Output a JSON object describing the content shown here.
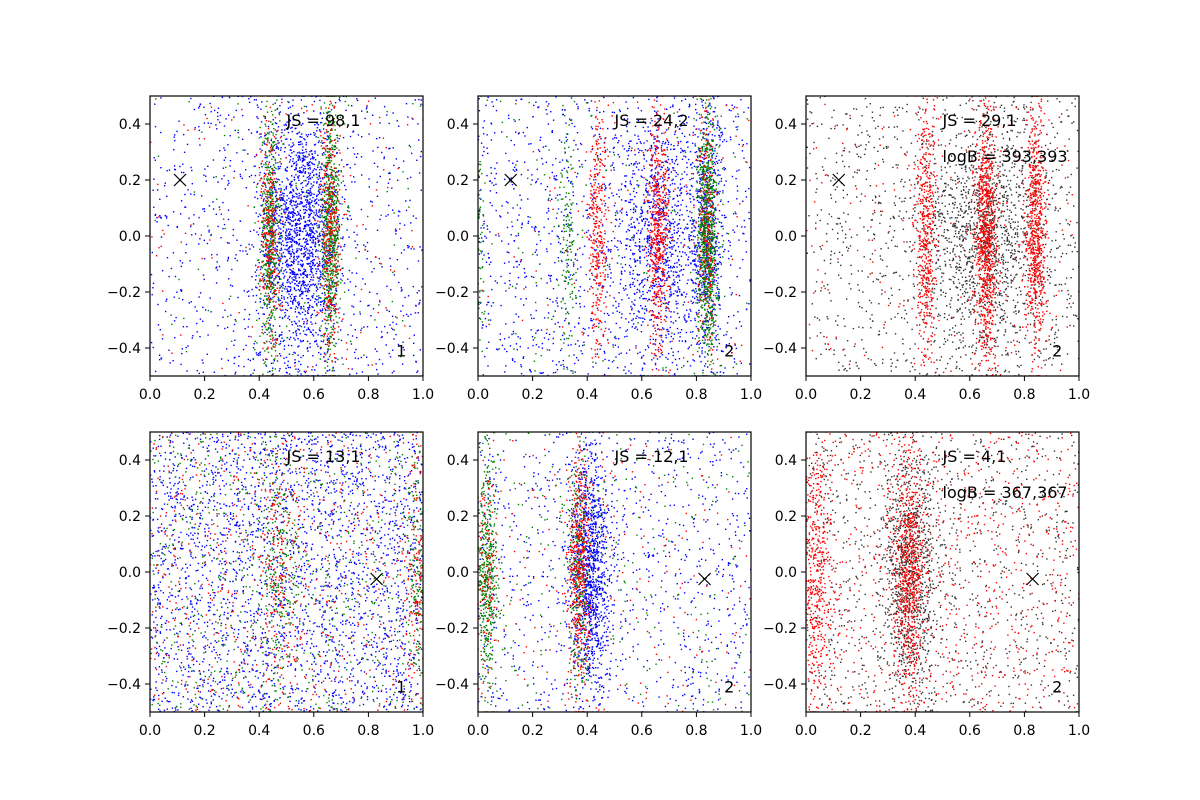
{
  "chart_data": [
    {
      "type": "scatter",
      "panel": "top-left",
      "xlim": [
        0,
        1
      ],
      "ylim": [
        -0.5,
        0.5
      ],
      "xticks": [
        "0.0",
        "0.2",
        "0.4",
        "0.6",
        "0.8",
        "1.0"
      ],
      "yticks": [
        "0.4",
        "0.2",
        "0.0",
        "−0.2",
        "−0.4"
      ],
      "annotations": [
        "JS = 98,1"
      ],
      "corner_label": "1",
      "marker_x": {
        "x": 0.11,
        "y": 0.2,
        "symbol": "×"
      },
      "series": [
        {
          "name": "blue",
          "color": "#0000ff",
          "bands": [
            {
              "center": 0.55,
              "width": 0.07,
              "points": 1600
            }
          ],
          "background_points": 900
        },
        {
          "name": "green",
          "color": "#008000",
          "bands": [
            {
              "center": 0.44,
              "width": 0.018,
              "points": 550
            },
            {
              "center": 0.66,
              "width": 0.018,
              "points": 700
            }
          ],
          "background_points": 120
        },
        {
          "name": "red",
          "color": "#ff0000",
          "bands": [
            {
              "center": 0.44,
              "width": 0.018,
              "points": 300
            },
            {
              "center": 0.66,
              "width": 0.018,
              "points": 350
            }
          ],
          "background_points": 120
        }
      ]
    },
    {
      "type": "scatter",
      "panel": "top-middle",
      "xlim": [
        0,
        1
      ],
      "ylim": [
        -0.5,
        0.5
      ],
      "xticks": [
        "0.0",
        "0.2",
        "0.4",
        "0.6",
        "0.8",
        "1.0"
      ],
      "yticks": [
        "0.4",
        "0.2",
        "0.0",
        "−0.2",
        "−0.4"
      ],
      "annotations": [
        "JS = 24,2"
      ],
      "corner_label": "2",
      "marker_x": {
        "x": 0.12,
        "y": 0.2,
        "symbol": "×"
      },
      "series": [
        {
          "name": "blue",
          "color": "#0000ff",
          "bands": [
            {
              "center": 0.66,
              "width": 0.08,
              "points": 900
            },
            {
              "center": 0.84,
              "width": 0.03,
              "points": 500
            }
          ],
          "background_points": 1200
        },
        {
          "name": "green",
          "color": "#008000",
          "bands": [
            {
              "center": 0.84,
              "width": 0.018,
              "points": 900
            },
            {
              "center": 0.0,
              "width": 0.01,
              "points": 120
            },
            {
              "center": 0.33,
              "width": 0.015,
              "points": 150
            }
          ],
          "background_points": 150
        },
        {
          "name": "red",
          "color": "#ff0000",
          "bands": [
            {
              "center": 0.44,
              "width": 0.018,
              "points": 350
            },
            {
              "center": 0.66,
              "width": 0.02,
              "points": 550
            },
            {
              "center": 0.84,
              "width": 0.018,
              "points": 250
            }
          ],
          "background_points": 100
        }
      ]
    },
    {
      "type": "scatter",
      "panel": "top-right",
      "xlim": [
        0,
        1
      ],
      "ylim": [
        -0.5,
        0.5
      ],
      "xticks": [
        "0.0",
        "0.2",
        "0.4",
        "0.6",
        "0.8",
        "1.0"
      ],
      "yticks": [
        "0.4",
        "0.2",
        "0.0",
        "−0.2",
        "−0.4"
      ],
      "annotations": [
        "JS = 29,1",
        "logB = 393,393"
      ],
      "corner_label": "2",
      "marker_x": {
        "x": 0.12,
        "y": 0.2,
        "symbol": "×"
      },
      "series": [
        {
          "name": "black",
          "color": "#333333",
          "bands": [
            {
              "center": 0.66,
              "width": 0.12,
              "points": 1300
            }
          ],
          "background_points": 900
        },
        {
          "name": "red",
          "color": "#ff0000",
          "bands": [
            {
              "center": 0.44,
              "width": 0.02,
              "points": 500
            },
            {
              "center": 0.66,
              "width": 0.02,
              "points": 900
            },
            {
              "center": 0.84,
              "width": 0.02,
              "points": 700
            }
          ],
          "background_points": 200
        }
      ]
    },
    {
      "type": "scatter",
      "panel": "bottom-left",
      "xlim": [
        0,
        1
      ],
      "ylim": [
        -0.5,
        0.5
      ],
      "xticks": [
        "0.0",
        "0.2",
        "0.4",
        "0.6",
        "0.8",
        "1.0"
      ],
      "yticks": [
        "0.4",
        "0.2",
        "0.0",
        "−0.2",
        "−0.4"
      ],
      "annotations": [
        "JS = 13,1"
      ],
      "corner_label": "1",
      "marker_x": {
        "x": 0.83,
        "y": -0.025,
        "symbol": "×"
      },
      "series": [
        {
          "name": "blue",
          "color": "#0000ff",
          "bands": [],
          "background_points": 2600
        },
        {
          "name": "green",
          "color": "#008000",
          "bands": [
            {
              "center": 0.47,
              "width": 0.04,
              "points": 250
            },
            {
              "center": 0.98,
              "width": 0.02,
              "points": 150
            }
          ],
          "background_points": 700
        },
        {
          "name": "red",
          "color": "#ff0000",
          "bands": [
            {
              "center": 0.47,
              "width": 0.04,
              "points": 200
            },
            {
              "center": 0.98,
              "width": 0.02,
              "points": 120
            }
          ],
          "background_points": 600
        }
      ]
    },
    {
      "type": "scatter",
      "panel": "bottom-middle",
      "xlim": [
        0,
        1
      ],
      "ylim": [
        -0.5,
        0.5
      ],
      "xticks": [
        "0.0",
        "0.2",
        "0.4",
        "0.6",
        "0.8",
        "1.0"
      ],
      "yticks": [
        "0.4",
        "0.2",
        "0.0",
        "−0.2",
        "−0.4"
      ],
      "annotations": [
        "JS = 12,1"
      ],
      "corner_label": "2",
      "marker_x": {
        "x": 0.83,
        "y": -0.025,
        "symbol": "×"
      },
      "series": [
        {
          "name": "blue",
          "color": "#0000ff",
          "bands": [
            {
              "center": 0.41,
              "width": 0.035,
              "points": 1100
            }
          ],
          "background_points": 900
        },
        {
          "name": "green",
          "color": "#008000",
          "bands": [
            {
              "center": 0.03,
              "width": 0.02,
              "points": 500
            },
            {
              "center": 0.37,
              "width": 0.02,
              "points": 300
            }
          ],
          "background_points": 250
        },
        {
          "name": "red",
          "color": "#ff0000",
          "bands": [
            {
              "center": 0.37,
              "width": 0.02,
              "points": 500
            },
            {
              "center": 0.03,
              "width": 0.02,
              "points": 150
            }
          ],
          "background_points": 200
        }
      ]
    },
    {
      "type": "scatter",
      "panel": "bottom-right",
      "xlim": [
        0,
        1
      ],
      "ylim": [
        -0.5,
        0.5
      ],
      "xticks": [
        "0.0",
        "0.2",
        "0.4",
        "0.6",
        "0.8",
        "1.0"
      ],
      "yticks": [
        "0.4",
        "0.2",
        "0.0",
        "−0.2",
        "−0.4"
      ],
      "annotations": [
        "JS = 4,1",
        "logB = 367,367"
      ],
      "corner_label": "2",
      "marker_x": {
        "x": 0.83,
        "y": -0.025,
        "symbol": "×"
      },
      "series": [
        {
          "name": "black",
          "color": "#333333",
          "bands": [
            {
              "center": 0.38,
              "width": 0.05,
              "points": 900
            }
          ],
          "background_points": 1000
        },
        {
          "name": "red",
          "color": "#ff0000",
          "bands": [
            {
              "center": 0.38,
              "width": 0.03,
              "points": 700
            },
            {
              "center": 0.03,
              "width": 0.03,
              "points": 500
            }
          ],
          "background_points": 900
        }
      ]
    }
  ]
}
